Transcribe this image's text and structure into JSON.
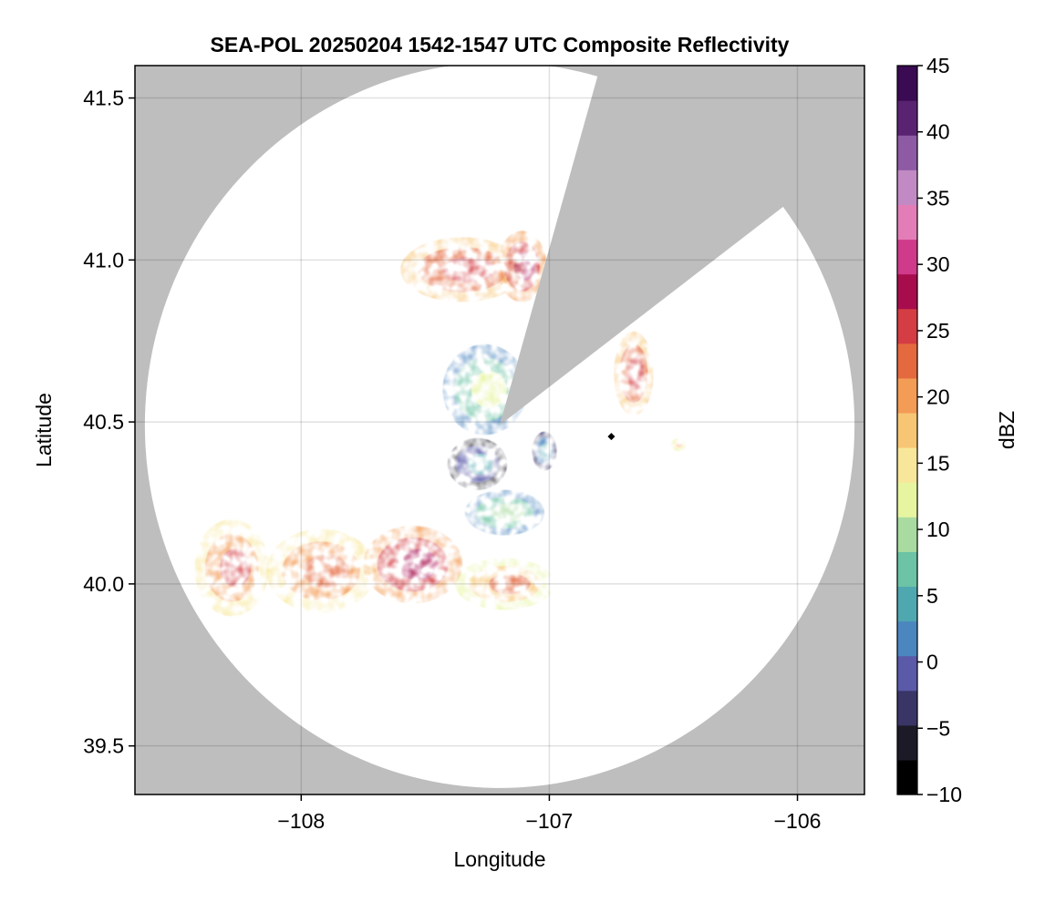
{
  "chart_data": {
    "type": "heatmap",
    "title": "SEA-POL 20250204 1542-1547 UTC Composite Reflectivity",
    "xlabel": "Longitude",
    "ylabel": "Latitude",
    "xlim": [
      -108.67,
      -105.73
    ],
    "ylim": [
      39.35,
      41.6
    ],
    "x_ticks": [
      -108,
      -107,
      -106
    ],
    "x_tick_labels": [
      "−108",
      "−107",
      "−106"
    ],
    "y_ticks": [
      39.5,
      40.0,
      40.5,
      41.0,
      41.5
    ],
    "y_tick_labels": [
      "39.5",
      "40.0",
      "40.5",
      "41.0",
      "41.5"
    ],
    "grid": true,
    "background_color": "#bebebe",
    "no_echo_color": "#ffffff",
    "radar": {
      "center": [
        -107.2,
        40.49
      ],
      "range_lat_deg": 1.12,
      "range_lon_deg": 1.43,
      "blocked_sector_deg": [
        16,
        53
      ]
    },
    "marker": {
      "lon": -106.75,
      "lat": 40.455,
      "shape": "diamond",
      "color": "#000000"
    },
    "colorbar": {
      "label": "dBZ",
      "min": -10,
      "max": 45,
      "ticks": [
        -10,
        -5,
        0,
        5,
        10,
        15,
        20,
        25,
        30,
        35,
        40,
        45
      ],
      "tick_labels": [
        "−10",
        "−5",
        "0",
        "5",
        "10",
        "15",
        "20",
        "25",
        "30",
        "35",
        "40",
        "45"
      ],
      "colors": [
        "#000000",
        "#1c1a27",
        "#3a3567",
        "#5a5aa8",
        "#4b86bf",
        "#4fa7b0",
        "#6cc3a5",
        "#a9dba0",
        "#e7f4a0",
        "#f8e79a",
        "#f7c675",
        "#f39c56",
        "#e5693f",
        "#d43d43",
        "#a70d4d",
        "#d03a8a",
        "#e37db7",
        "#c18ac4",
        "#8d5aa3",
        "#5a2372",
        "#3a0a52"
      ]
    },
    "echoes": [
      {
        "lon": -107.35,
        "lat": 40.97,
        "rx": 0.25,
        "ry": 0.1,
        "dbz": 27
      },
      {
        "lon": -107.11,
        "lat": 40.98,
        "rx": 0.1,
        "ry": 0.11,
        "dbz": 29
      },
      {
        "lon": -107.26,
        "lat": 40.6,
        "rx": 0.17,
        "ry": 0.14,
        "dbz": 11
      },
      {
        "lon": -107.29,
        "lat": 40.37,
        "rx": 0.12,
        "ry": 0.08,
        "dbz": 3
      },
      {
        "lon": -106.66,
        "lat": 40.65,
        "rx": 0.08,
        "ry": 0.13,
        "dbz": 26
      },
      {
        "lon": -108.28,
        "lat": 40.05,
        "rx": 0.15,
        "ry": 0.15,
        "dbz": 25
      },
      {
        "lon": -107.92,
        "lat": 40.04,
        "rx": 0.22,
        "ry": 0.13,
        "dbz": 23
      },
      {
        "lon": -107.55,
        "lat": 40.06,
        "rx": 0.2,
        "ry": 0.12,
        "dbz": 29
      },
      {
        "lon": -107.18,
        "lat": 40.0,
        "rx": 0.2,
        "ry": 0.08,
        "dbz": 22
      },
      {
        "lon": -107.18,
        "lat": 40.22,
        "rx": 0.16,
        "ry": 0.07,
        "dbz": 10
      },
      {
        "lon": -107.02,
        "lat": 40.41,
        "rx": 0.05,
        "ry": 0.06,
        "dbz": 5
      },
      {
        "lon": -106.48,
        "lat": 40.43,
        "rx": 0.03,
        "ry": 0.02,
        "dbz": 20
      }
    ]
  }
}
